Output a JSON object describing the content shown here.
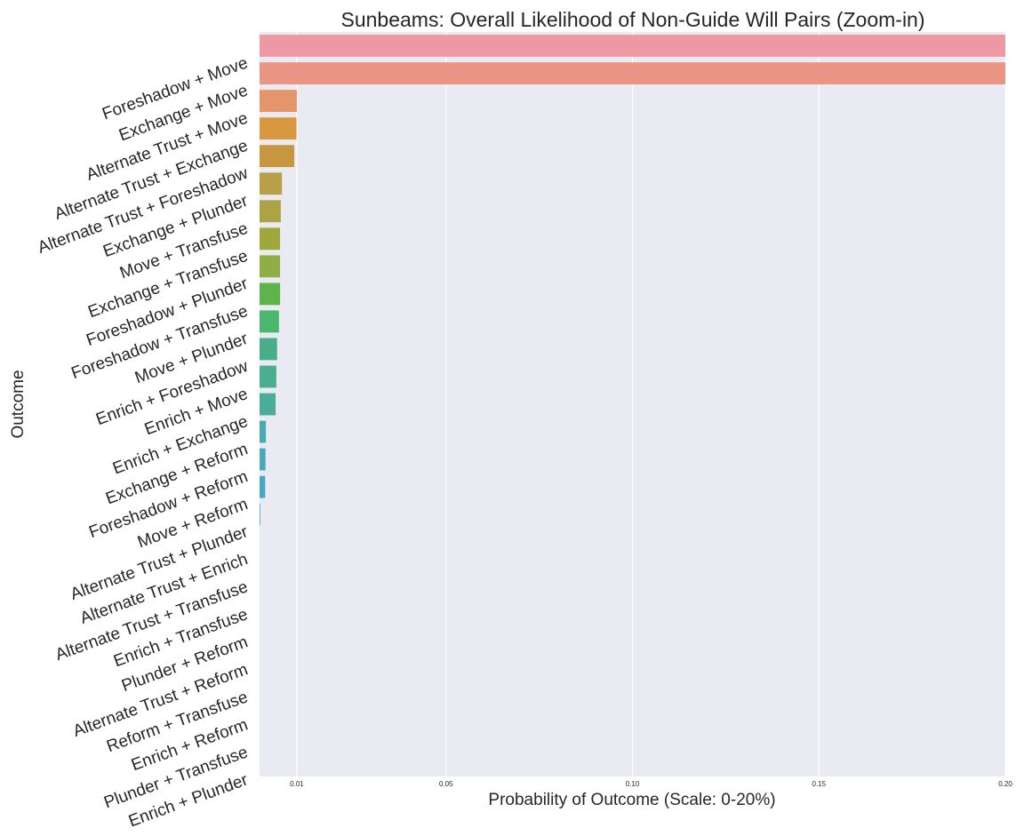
{
  "chart_data": {
    "type": "bar",
    "orientation": "horizontal",
    "title": "Sunbeams: Overall Likelihood of Non-Guide Will Pairs (Zoom-in)",
    "xlabel": "Probability of Outcome (Scale: 0-20%)",
    "ylabel": "Outcome",
    "xlim": [
      0,
      0.2
    ],
    "xticks": [
      0.01,
      0.05,
      0.1,
      0.15,
      0.2
    ],
    "xtick_labels": [
      "0.01",
      "0.05",
      "0.10",
      "0.15",
      "0.20"
    ],
    "grid": true,
    "legend": "none",
    "categories": [
      "Foreshadow + Move",
      "Exchange + Move",
      "Alternate Trust + Move",
      "Alternate Trust + Exchange",
      "Alternate Trust + Foreshadow",
      "Exchange + Plunder",
      "Move + Transfuse",
      "Exchange + Transfuse",
      "Foreshadow + Plunder",
      "Foreshadow + Transfuse",
      "Move + Plunder",
      "Enrich + Foreshadow",
      "Enrich + Move",
      "Enrich + Exchange",
      "Exchange + Reform",
      "Foreshadow + Reform",
      "Move + Reform",
      "Alternate Trust + Plunder",
      "Alternate Trust + Enrich",
      "Alternate Trust + Transfuse",
      "Enrich + Transfuse",
      "Plunder + Reform",
      "Alternate Trust + Reform",
      "Reform + Transfuse",
      "Enrich + Reform",
      "Plunder + Transfuse",
      "Enrich + Plunder"
    ],
    "values": [
      0.2,
      0.2,
      0.01,
      0.0099,
      0.0093,
      0.006,
      0.0057,
      0.0055,
      0.0055,
      0.0055,
      0.0052,
      0.0047,
      0.0045,
      0.0043,
      0.0017,
      0.0016,
      0.0015,
      0.0002,
      0,
      0,
      0,
      0,
      0,
      0,
      0,
      0,
      0
    ],
    "colors": [
      "#ed98a2",
      "#ea9583",
      "#e4966a",
      "#d99840",
      "#c7973f",
      "#b8a04a",
      "#aca345",
      "#a0a83d",
      "#8fae45",
      "#5cb44a",
      "#4bb66d",
      "#48ae8a",
      "#4aae8f",
      "#4bac99",
      "#4aabae",
      "#49aab8",
      "#4aa6c5",
      "#5e9fd6",
      "#8a94e8",
      "#a58ae9",
      "#c38bd8",
      "#dd8ad0",
      "#e88bc6",
      "#ee8bba",
      "#ef8fb0",
      "#f095a6",
      "#f09aa0"
    ],
    "plot_background": "#eaeaf2"
  }
}
